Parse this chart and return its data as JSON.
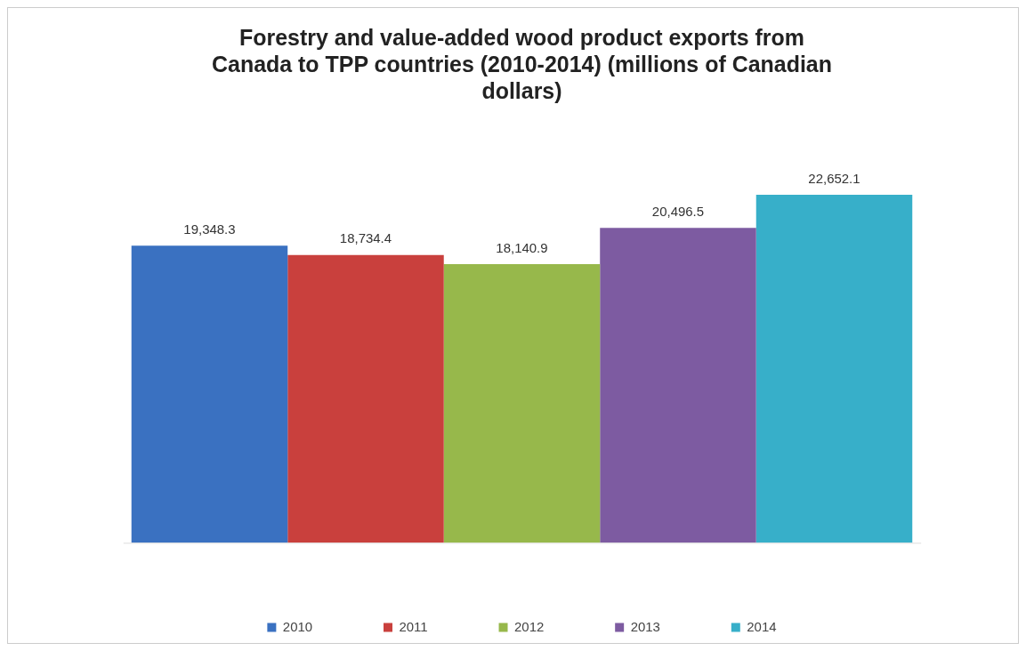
{
  "chart_data": {
    "type": "bar",
    "title": "Forestry and value-added wood product exports from Canada to TPP countries (2010-2014) (millions of Canadian dollars)",
    "categories": [
      null
    ],
    "series": [
      {
        "name": "2010",
        "color": "#3a71c1",
        "values": [
          19348.3
        ],
        "value_labels": [
          "19,348.3"
        ]
      },
      {
        "name": "2011",
        "color": "#c9403d",
        "values": [
          18734.4
        ],
        "value_labels": [
          "18,734.4"
        ]
      },
      {
        "name": "2012",
        "color": "#97b84b",
        "values": [
          18140.9
        ],
        "value_labels": [
          "18,140.9"
        ]
      },
      {
        "name": "2013",
        "color": "#7d5ba1",
        "values": [
          20496.5
        ],
        "value_labels": [
          "20,496.5"
        ]
      },
      {
        "name": "2014",
        "color": "#37afc9",
        "values": [
          22652.1
        ],
        "value_labels": [
          "22,652.1"
        ]
      }
    ],
    "legend": "bottom",
    "grid": false
  }
}
